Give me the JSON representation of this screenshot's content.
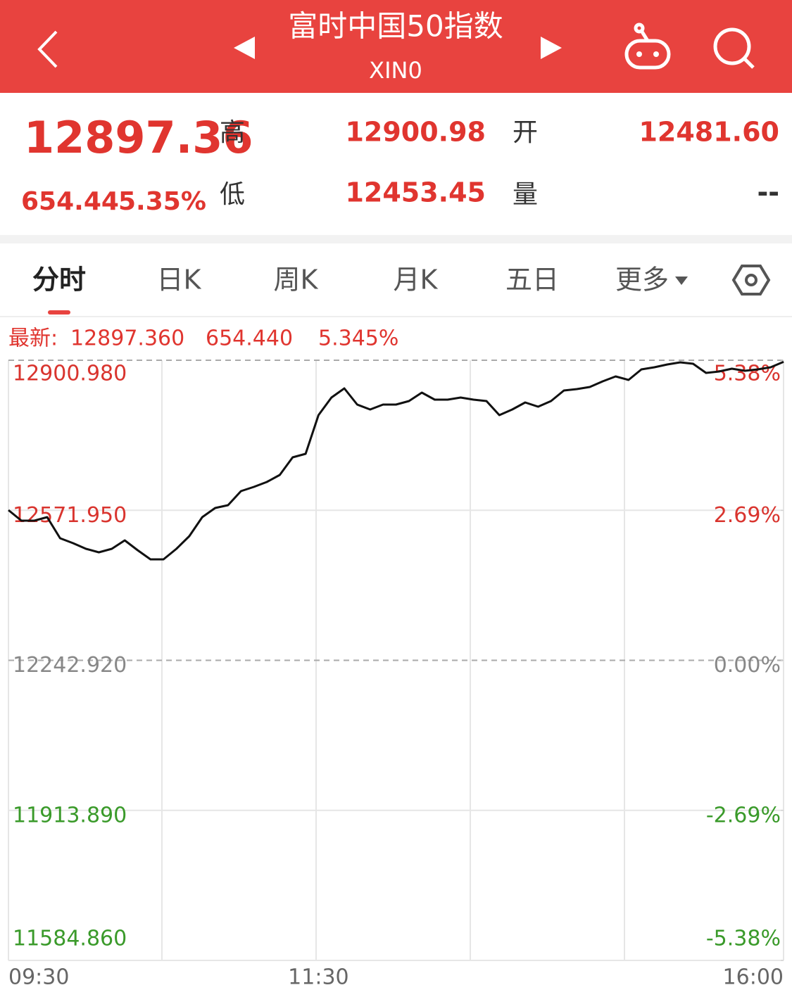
{
  "header": {
    "title": "富时中国50指数",
    "subtitle": "XIN0"
  },
  "quote": {
    "price": "12897.36",
    "change": "654.44",
    "change_pct": "5.35%",
    "fields": [
      {
        "label": "高",
        "value": "12900.98"
      },
      {
        "label": "开",
        "value": "12481.60"
      },
      {
        "label": "低",
        "value": "12453.45"
      },
      {
        "label": "量",
        "value": "--"
      }
    ]
  },
  "tabs": [
    "分时",
    "日K",
    "周K",
    "月K",
    "五日",
    "更多"
  ],
  "chart_data": {
    "type": "line",
    "latest": {
      "label": "最新:",
      "price": "12897.360",
      "change": "654.440",
      "change_pct": "5.345%"
    },
    "categories": [
      "09:30",
      null,
      null,
      null,
      null,
      null,
      null,
      null,
      null,
      null,
      null,
      null,
      null,
      null,
      null,
      null,
      null,
      null,
      null,
      null,
      null,
      null,
      null,
      null,
      "11:30",
      null,
      null,
      null,
      null,
      null,
      null,
      null,
      null,
      null,
      null,
      null,
      null,
      null,
      null,
      null,
      null,
      null,
      null,
      null,
      null,
      null,
      null,
      null,
      null,
      null,
      null,
      null,
      null,
      null,
      null,
      null,
      null,
      null,
      null,
      null,
      "16:00"
    ],
    "series": [
      {
        "color": "#111111",
        "values": [
          12572.3,
          12549.2,
          12549.2,
          12556.9,
          12510.6,
          12499.8,
          12487.5,
          12479.8,
          12487.5,
          12506.0,
          12484.4,
          12464.3,
          12464.3,
          12487.5,
          12515.2,
          12556.9,
          12577.0,
          12583.1,
          12614.0,
          12623.3,
          12634.1,
          12649.5,
          12688.1,
          12695.8,
          12780.6,
          12819.2,
          12839.3,
          12803.8,
          12793.0,
          12803.8,
          12803.8,
          12811.5,
          12830.0,
          12814.6,
          12814.6,
          12819.2,
          12814.6,
          12811.5,
          12780.6,
          12793.0,
          12808.4,
          12799.2,
          12811.5,
          12834.7,
          12837.7,
          12842.4,
          12854.7,
          12865.5,
          12857.8,
          12880.9,
          12885.6,
          12891.7,
          12896.4,
          12893.3,
          12873.2,
          12876.3,
          12882.5,
          12877.9,
          12880.9,
          12885.6,
          12897.36
        ]
      }
    ],
    "ylim": [
      11584.86,
      12900.98
    ],
    "yticks": [
      {
        "value": 12900.98,
        "label": "12900.980"
      },
      {
        "value": 12571.95,
        "label": "12571.950"
      },
      {
        "value": 12242.92,
        "label": "12242.920"
      },
      {
        "value": 11913.89,
        "label": "11913.890"
      },
      {
        "value": 11584.86,
        "label": "11584.860"
      }
    ],
    "y2lim": [
      -5.38,
      5.38
    ],
    "y2ticks": [
      {
        "value": 5.38,
        "label": "5.38%"
      },
      {
        "value": 2.69,
        "label": "2.69%"
      },
      {
        "value": 0,
        "label": "0.00%"
      },
      {
        "value": -2.69,
        "label": "-2.69%"
      },
      {
        "value": -5.38,
        "label": "-5.38%"
      }
    ]
  }
}
